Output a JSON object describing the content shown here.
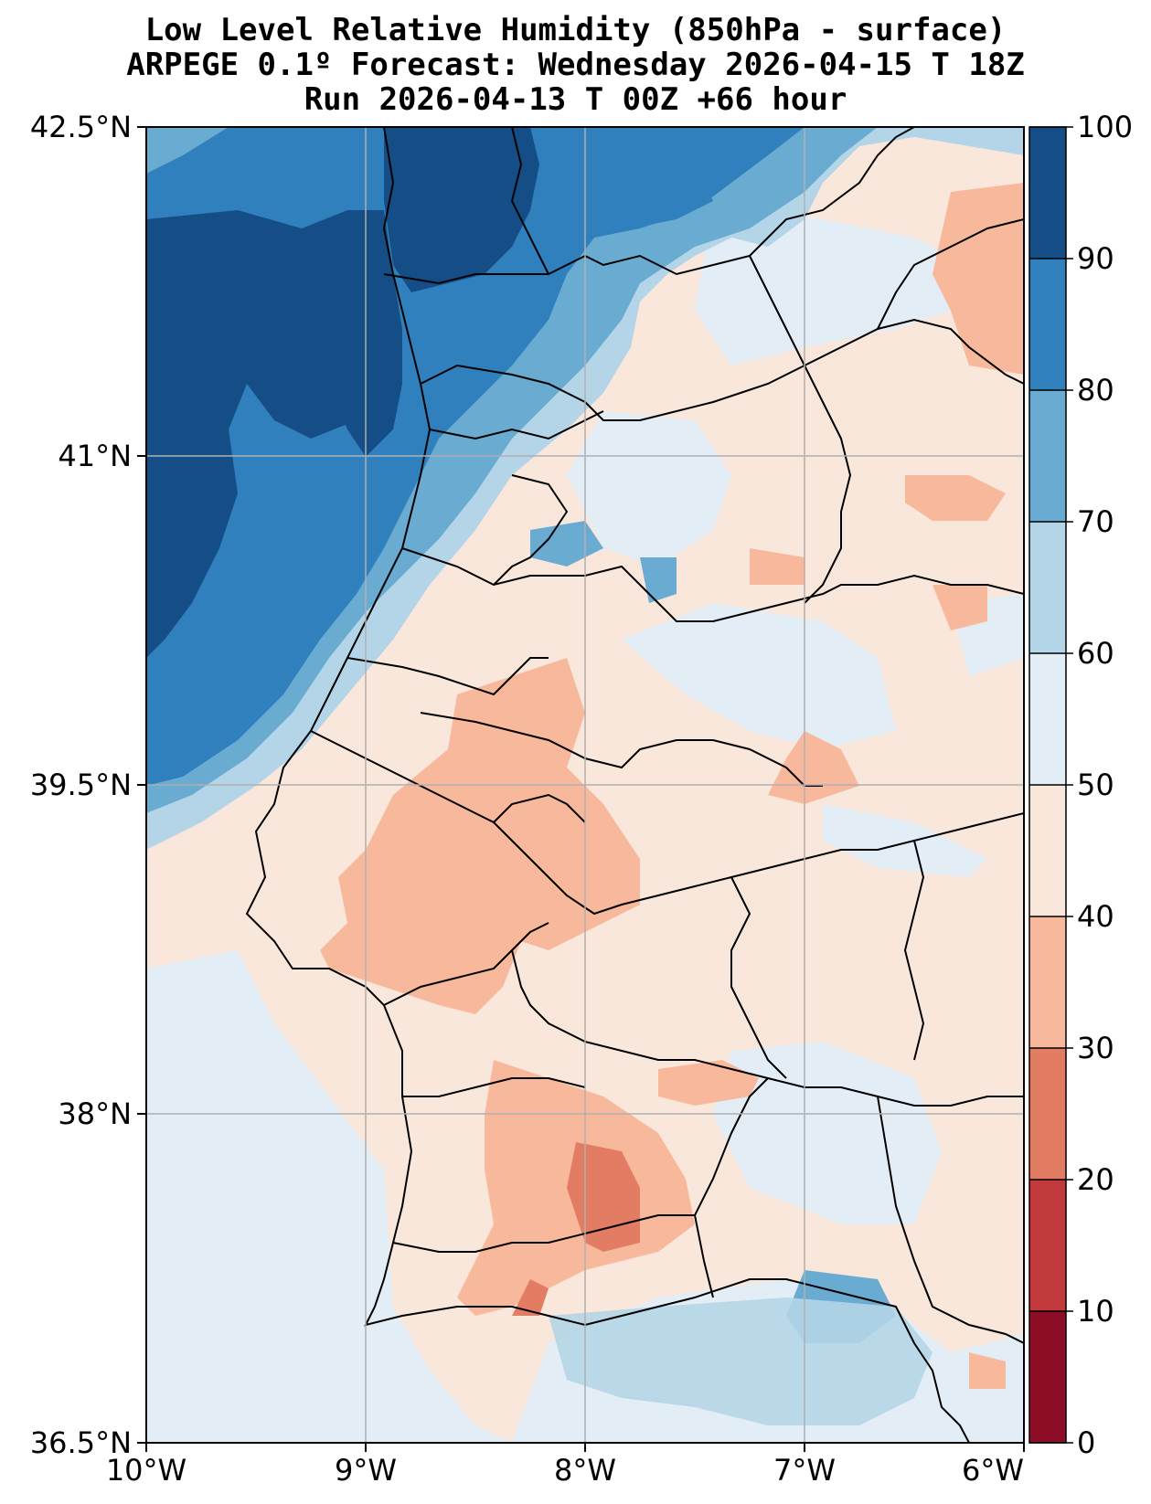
{
  "title": {
    "line1": "Low Level Relative Humidity (850hPa - surface)",
    "line2": "ARPEGE 0.1º Forecast: Wednesday 2026-04-15 T 18Z",
    "line3": "Run 2026-04-13 T 00Z +66 hour"
  },
  "map": {
    "lat_labels": [
      "42.5°N",
      "41°N",
      "39.5°N",
      "38°N",
      "36.5°N"
    ],
    "lon_labels": [
      "10°W",
      "9°W",
      "8°W",
      "7°W",
      "6°W"
    ],
    "lat_range": [
      36.5,
      42.5
    ],
    "lon_range": [
      -10,
      -6
    ]
  },
  "colorbar": {
    "ticks": [
      "0",
      "10",
      "20",
      "30",
      "40",
      "50",
      "60",
      "70",
      "80",
      "90",
      "100"
    ],
    "levels": [
      {
        "min": 0,
        "max": 10,
        "color": "#8c0d25"
      },
      {
        "min": 10,
        "max": 20,
        "color": "#c23a3b"
      },
      {
        "min": 20,
        "max": 30,
        "color": "#e27d63"
      },
      {
        "min": 30,
        "max": 40,
        "color": "#f7b89c"
      },
      {
        "min": 40,
        "max": 50,
        "color": "#fae7dc"
      },
      {
        "min": 50,
        "max": 60,
        "color": "#e3edf5"
      },
      {
        "min": 60,
        "max": 70,
        "color": "#b4d5e7"
      },
      {
        "min": 70,
        "max": 80,
        "color": "#6aabd1"
      },
      {
        "min": 80,
        "max": 90,
        "color": "#3080bd"
      },
      {
        "min": 90,
        "max": 100,
        "color": "#154e87"
      }
    ]
  }
}
